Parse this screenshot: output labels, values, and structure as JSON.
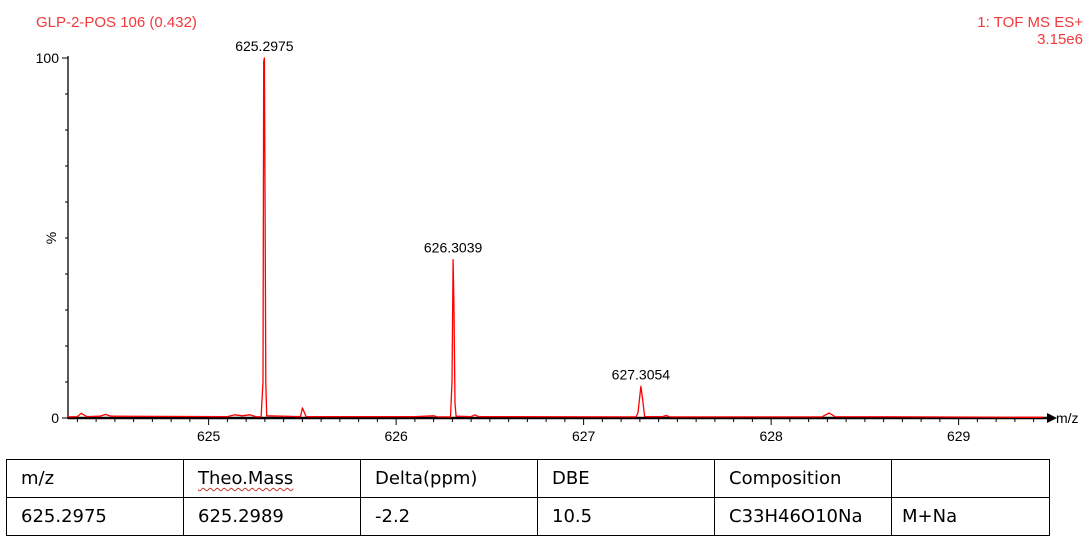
{
  "header": {
    "sample": "GLP-2-POS 106 (0.432)",
    "mode": "1: TOF MS ES+",
    "intensity": "3.15e6"
  },
  "chart_data": {
    "type": "line",
    "title": "",
    "xlabel": "m/z",
    "ylabel": "%",
    "xlim": [
      624.25,
      629.45
    ],
    "ylim": [
      0,
      100
    ],
    "x_ticks": [
      625,
      626,
      627,
      628,
      629
    ],
    "y_ticks": [
      0,
      100
    ],
    "grid": false,
    "series": [
      {
        "color": "#ff0000",
        "points": [
          [
            624.25,
            0.3
          ],
          [
            624.3,
            0.4
          ],
          [
            624.32,
            1.3
          ],
          [
            624.35,
            0.4
          ],
          [
            624.42,
            0.5
          ],
          [
            624.45,
            1.0
          ],
          [
            624.48,
            0.5
          ],
          [
            625.1,
            0.4
          ],
          [
            625.14,
            0.9
          ],
          [
            625.18,
            0.6
          ],
          [
            625.22,
            0.9
          ],
          [
            625.25,
            0.4
          ],
          [
            625.28,
            0.3
          ],
          [
            625.29,
            10
          ],
          [
            625.294,
            99
          ],
          [
            625.2975,
            100
          ],
          [
            625.301,
            58
          ],
          [
            625.305,
            10
          ],
          [
            625.31,
            0.6
          ],
          [
            625.49,
            0.4
          ],
          [
            625.5,
            2.8
          ],
          [
            625.52,
            0.4
          ],
          [
            626.1,
            0.4
          ],
          [
            626.2,
            0.6
          ],
          [
            626.22,
            0.3
          ],
          [
            626.29,
            0.3
          ],
          [
            626.298,
            10
          ],
          [
            626.3039,
            44
          ],
          [
            626.308,
            32
          ],
          [
            626.314,
            4
          ],
          [
            626.32,
            0.5
          ],
          [
            626.4,
            0.4
          ],
          [
            626.42,
            0.9
          ],
          [
            626.44,
            0.4
          ],
          [
            627.28,
            0.3
          ],
          [
            627.29,
            1.5
          ],
          [
            627.3054,
            8.8
          ],
          [
            627.315,
            5
          ],
          [
            627.325,
            0.4
          ],
          [
            627.42,
            0.4
          ],
          [
            627.44,
            0.7
          ],
          [
            627.46,
            0.3
          ],
          [
            628.27,
            0.3
          ],
          [
            628.31,
            1.4
          ],
          [
            628.34,
            0.4
          ],
          [
            629.45,
            0.2
          ]
        ]
      }
    ],
    "peak_labels": [
      {
        "x": 625.2975,
        "y": 100,
        "text": "625.2975"
      },
      {
        "x": 626.3039,
        "y": 44,
        "text": "626.3039"
      },
      {
        "x": 627.3054,
        "y": 8.8,
        "text": "627.3054"
      }
    ]
  },
  "results_table": {
    "headers": [
      "m/z",
      "Theo.Mass",
      "Delta(ppm)",
      "DBE",
      "Composition",
      ""
    ],
    "row": [
      "625.2975",
      "625.2989",
      "-2.2",
      "10.5",
      "C33H46O10Na",
      "M+Na"
    ]
  }
}
